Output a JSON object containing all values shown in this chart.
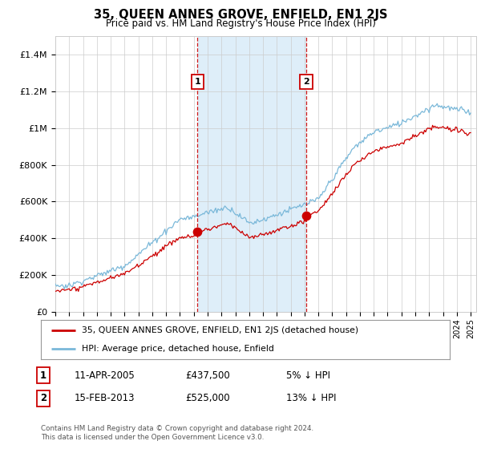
{
  "title": "35, QUEEN ANNES GROVE, ENFIELD, EN1 2JS",
  "subtitle": "Price paid vs. HM Land Registry's House Price Index (HPI)",
  "x_start_year": 1995,
  "x_end_year": 2025,
  "ylim": [
    0,
    1400000
  ],
  "yticks": [
    0,
    200000,
    400000,
    600000,
    800000,
    1000000,
    1200000,
    1400000
  ],
  "ytick_labels": [
    "£0",
    "£200K",
    "£400K",
    "£600K",
    "£800K",
    "£1M",
    "£1.2M",
    "£1.4M"
  ],
  "sale1_year": 2005.27,
  "sale1_price": 437500,
  "sale2_year": 2013.12,
  "sale2_price": 525000,
  "hpi_color": "#7ab8d9",
  "price_color": "#cc0000",
  "vline_color": "#cc0000",
  "shade_color": "#d6eaf8",
  "grid_color": "#cccccc",
  "background_color": "#ffffff",
  "legend_label_price": "35, QUEEN ANNES GROVE, ENFIELD, EN1 2JS (detached house)",
  "legend_label_hpi": "HPI: Average price, detached house, Enfield",
  "footnote": "Contains HM Land Registry data © Crown copyright and database right 2024.\nThis data is licensed under the Open Government Licence v3.0.",
  "table_row1": [
    "1",
    "11-APR-2005",
    "£437,500",
    "5% ↓ HPI"
  ],
  "table_row2": [
    "2",
    "15-FEB-2013",
    "£525,000",
    "13% ↓ HPI"
  ]
}
